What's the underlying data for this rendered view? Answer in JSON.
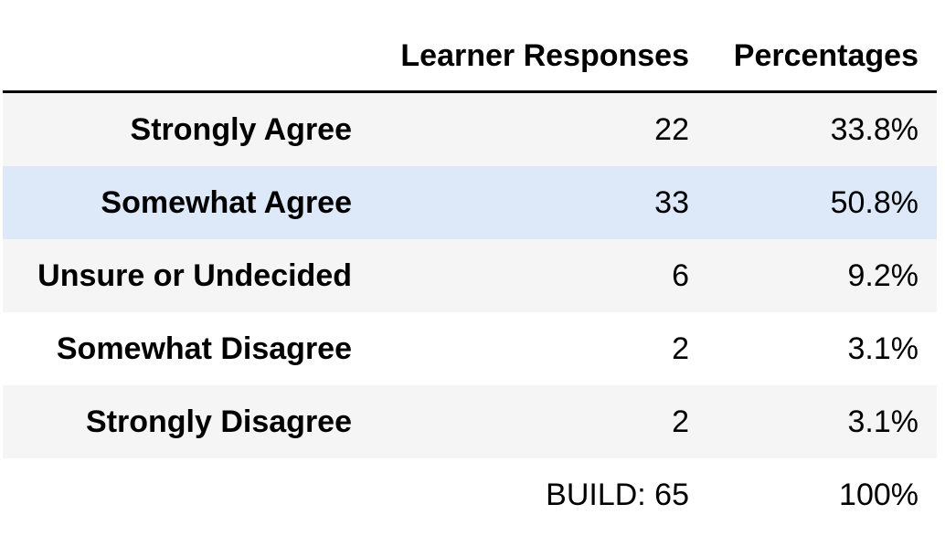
{
  "table": {
    "headers": {
      "label": "",
      "count": "Learner Responses",
      "percent": "Percentages"
    },
    "rows": [
      {
        "label": "Strongly Agree",
        "count": "22",
        "percent": "33.8%"
      },
      {
        "label": "Somewhat Agree",
        "count": "33",
        "percent": "50.8%"
      },
      {
        "label": "Unsure or Undecided",
        "count": "6",
        "percent": "9.2%"
      },
      {
        "label": "Somewhat Disagree",
        "count": "2",
        "percent": "3.1%"
      },
      {
        "label": "Strongly Disagree",
        "count": "2",
        "percent": "3.1%"
      }
    ],
    "total": {
      "label": "",
      "count": "BUILD: 65",
      "percent": "100%"
    }
  },
  "colors": {
    "stripe": "#f5f5f5",
    "hover_row": "#dde9f8",
    "header_rule": "#000000"
  }
}
